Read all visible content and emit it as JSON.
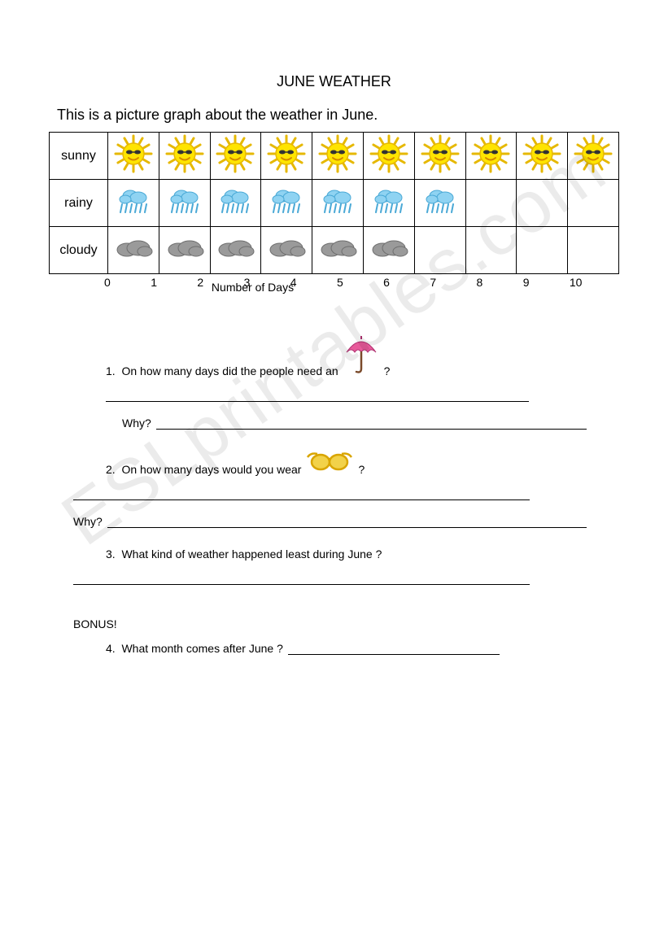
{
  "title": "JUNE WEATHER",
  "intro": "This is a picture graph about the weather in June.",
  "graph": {
    "row_labels": [
      "sunny",
      "rainy",
      "cloudy"
    ],
    "counts": [
      10,
      7,
      6
    ],
    "axis": {
      "min": 0,
      "max": 10,
      "ticks": [
        "0",
        "1",
        "2",
        "3",
        "4",
        "5",
        "6",
        "7",
        "8",
        "9",
        "10"
      ]
    },
    "axis_label": "Number of Days",
    "cell_border_color": "#000000",
    "icons": {
      "sunny": {
        "fill": "#ffe400",
        "stroke": "#e6b800",
        "face": "#d48900"
      },
      "rainy": {
        "cloud_fill": "#8fd3f2",
        "cloud_stroke": "#4aa9d6",
        "drop": "#4aa9d6"
      },
      "cloudy": {
        "fill": "#9a9a9a",
        "stroke": "#6e6e6e"
      }
    }
  },
  "questions": {
    "q1": {
      "num": "1.",
      "text_before": "On how many days did the people need an",
      "text_after": "?",
      "icon": "umbrella"
    },
    "q1_why": "Why?",
    "q2": {
      "num": "2.",
      "text_before": "On how many days would you wear",
      "text_after": "?",
      "icon": "sunglasses"
    },
    "q2_why": "Why?",
    "q3": {
      "num": "3.",
      "text": "What kind of weather happened least during June ?"
    },
    "bonus_label": "BONUS!",
    "q4": {
      "num": "4.",
      "text": "What month comes after June ?"
    }
  },
  "umbrella": {
    "fill": "#e75a9a",
    "stroke": "#b03070",
    "handle": "#7a4a2a"
  },
  "sunglasses": {
    "frame": "#d9a500",
    "lens": "#f2d24a"
  },
  "watermark": "ESLprintables.com"
}
